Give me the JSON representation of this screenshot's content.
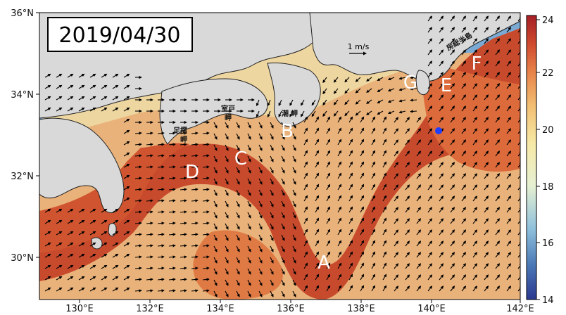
{
  "date_label": "2019/04/30",
  "scale_arrow_label": "1 m/s",
  "region_labels": [
    "A",
    "B",
    "C",
    "D",
    "E",
    "F",
    "G"
  ],
  "place_names": {
    "muroto_1": "室戸",
    "muroto_2": "岬",
    "shiono_1": "潮",
    "shiono_2": "岬",
    "ashizuri_1": "足摺",
    "ashizuri_2": "岬",
    "boso": "房総半島"
  },
  "axes": {
    "lon_ticks": [
      "130°E",
      "132°E",
      "134°E",
      "136°E",
      "138°E",
      "140°E",
      "142°E"
    ],
    "lat_ticks": [
      "36°N",
      "34°N",
      "32°N",
      "30°N"
    ]
  },
  "colorbar": {
    "ticks": [
      "24",
      "22",
      "20",
      "18",
      "16",
      "14"
    ],
    "colors": [
      "#2b3990",
      "#4a78b5",
      "#8fc1dc",
      "#e6f0d2",
      "#f7e9a6",
      "#f2bf73",
      "#e8834a",
      "#cf4a2e",
      "#a51f27"
    ]
  },
  "colors": {
    "land": "#d9d9d9",
    "warm_current": "#c84a2c",
    "mid_water": "#e9a86a",
    "cool_water": "#eed6a0",
    "cold_water": "#6ea0cf",
    "marker": "#1f3fff"
  }
}
